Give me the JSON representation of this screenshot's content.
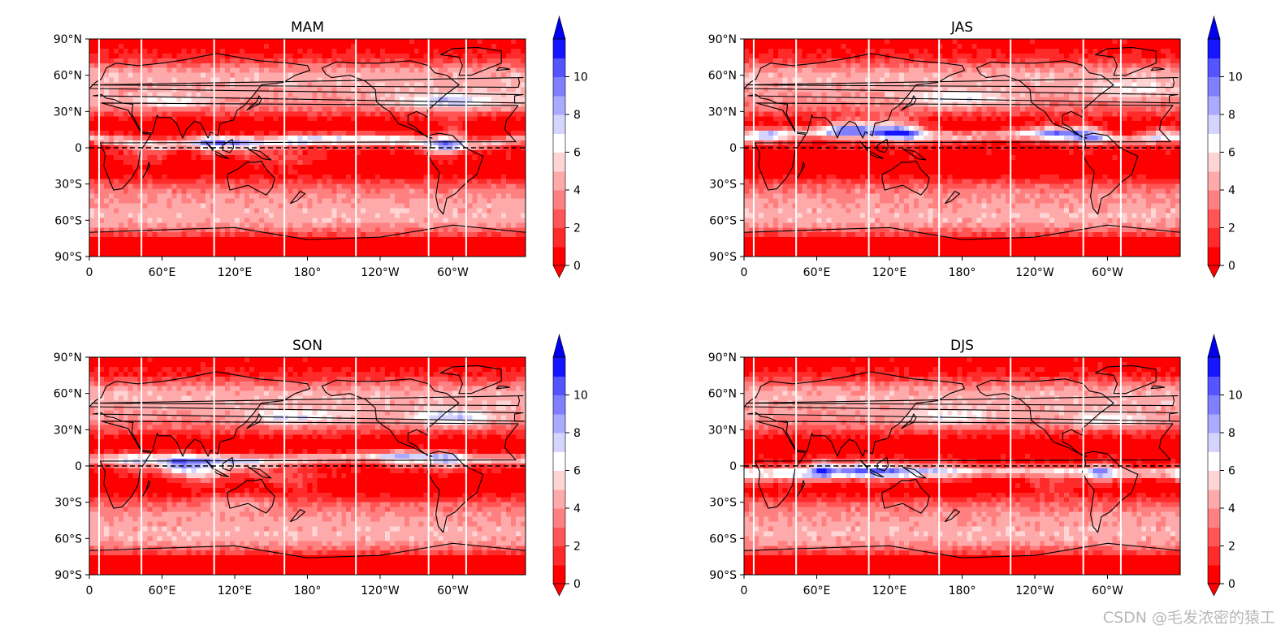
{
  "chart_data": {
    "type": "heatmap",
    "subtype": "global filled-contour maps with colorbars",
    "colormap": {
      "levels": [
        0,
        1,
        2,
        3,
        4,
        5,
        6,
        7,
        8,
        9,
        10,
        11
      ],
      "colors": [
        "#ff0000",
        "#ff2a2a",
        "#ff5555",
        "#ff8080",
        "#ffaaaa",
        "#ffd4d4",
        "#ffffff",
        "#d4d4ff",
        "#aaaaff",
        "#7f7fff",
        "#5555ff",
        "#1515ff"
      ],
      "extend": "both",
      "ticks": [
        "0",
        "2",
        "4",
        "6",
        "8",
        "10"
      ]
    },
    "x_ticks": [
      "0",
      "60°E",
      "120°E",
      "180°",
      "120°W",
      "60°W"
    ],
    "y_ticks": [
      "90°N",
      "60°N",
      "30°N",
      "0",
      "30°S",
      "60°S",
      "90°S"
    ],
    "xlim": [
      0,
      360
    ],
    "ylim": [
      -90,
      90
    ],
    "vertical_lines_lon": [
      8,
      43,
      103,
      161,
      220,
      280,
      311
    ],
    "equator_line": "dashed",
    "panels": [
      {
        "title": "MAM",
        "position": "top-left"
      },
      {
        "title": "JAS",
        "position": "top-right"
      },
      {
        "title": "SON",
        "position": "bottom-left"
      },
      {
        "title": "DJS",
        "position": "bottom-right"
      }
    ]
  },
  "watermark": "CSDN @毛发浓密的猿工"
}
